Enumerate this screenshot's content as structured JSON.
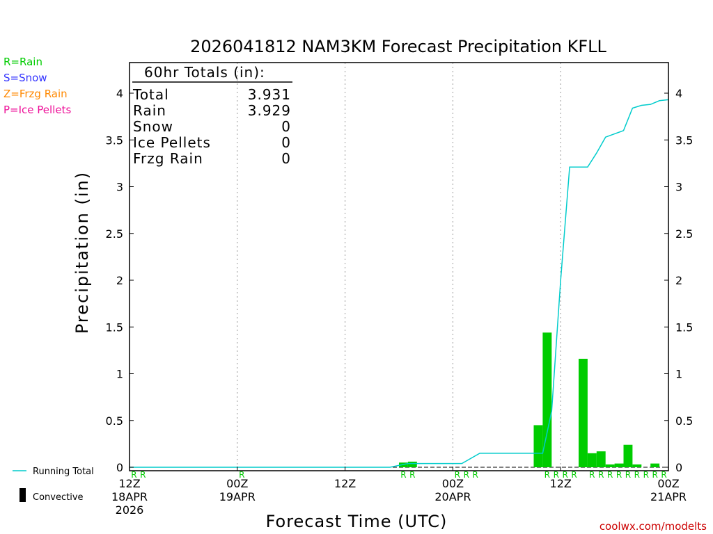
{
  "chart_data": {
    "type": "bar",
    "title": "2026041812 NAM3KM Forecast Precipitation KFLL",
    "xlabel": "Forecast Time (UTC)",
    "ylabel": "Precipitation (in)",
    "xlim_hours": [
      0,
      60
    ],
    "ylim": [
      -0.05,
      4.3
    ],
    "y_ticks": [
      0,
      0.5,
      1,
      1.5,
      2,
      2.5,
      3,
      3.5,
      4
    ],
    "y_tick_labels": [
      "0",
      "0.5",
      "1",
      "1.5",
      "2",
      "2.5",
      "3",
      "3.5",
      "4"
    ],
    "x_ticks": [
      {
        "hour": 0,
        "lines": [
          "12Z",
          "18APR",
          "2026"
        ]
      },
      {
        "hour": 12,
        "lines": [
          "00Z",
          "19APR"
        ]
      },
      {
        "hour": 24,
        "lines": [
          "12Z"
        ]
      },
      {
        "hour": 36,
        "lines": [
          "00Z",
          "20APR"
        ]
      },
      {
        "hour": 48,
        "lines": [
          "12Z"
        ]
      },
      {
        "hour": 60,
        "lines": [
          "00Z",
          "21APR"
        ]
      }
    ],
    "gridlines_hours": [
      12,
      24,
      36,
      48
    ],
    "hourly_precip": {
      "name": "Rain",
      "color": "#00cc00",
      "hours": [
        31,
        32,
        46,
        47,
        51,
        52,
        53,
        54,
        55,
        56,
        57,
        59
      ],
      "values": [
        0.05,
        0.06,
        0.45,
        1.44,
        1.16,
        0.15,
        0.17,
        0.03,
        0.04,
        0.24,
        0.03,
        0.04
      ]
    },
    "running_total": {
      "name": "Running Total",
      "color": "#00cccc",
      "hours": [
        0,
        29,
        31,
        37,
        39,
        46,
        47,
        48,
        49,
        51,
        52,
        53,
        55,
        56,
        57,
        58,
        59,
        60
      ],
      "values": [
        0,
        0,
        0.04,
        0.04,
        0.15,
        0.15,
        0.6,
        2.0,
        3.21,
        3.21,
        3.36,
        3.53,
        3.6,
        3.84,
        3.87,
        3.88,
        3.92,
        3.93
      ]
    },
    "ptype_markers": {
      "R": [
        1,
        2,
        13,
        31,
        32,
        37,
        38,
        39,
        47,
        48,
        49,
        50,
        52,
        53,
        54,
        55,
        56,
        57,
        58,
        59,
        60
      ],
      "color": "#00cc00"
    }
  },
  "totals": {
    "header": "60hr Totals (in):",
    "rows": [
      {
        "label": "Total",
        "value": "3.931"
      },
      {
        "label": "Rain",
        "value": "3.929"
      },
      {
        "label": "Snow",
        "value": "0"
      },
      {
        "label": "Ice Pellets",
        "value": "0"
      },
      {
        "label": "Frzg Rain",
        "value": "0"
      }
    ]
  },
  "ptype_legend": [
    {
      "text": "R=Rain",
      "color": "#00cc00"
    },
    {
      "text": "S=Snow",
      "color": "#3333ff"
    },
    {
      "text": "Z=Frzg Rain",
      "color": "#ff8800"
    },
    {
      "text": "P=Ice Pellets",
      "color": "#ee1199"
    }
  ],
  "series_legend": {
    "running_total": "Running Total",
    "convective": "Convective"
  },
  "credit": "coolwx.com/modelts",
  "credit_color": "#cc0000"
}
